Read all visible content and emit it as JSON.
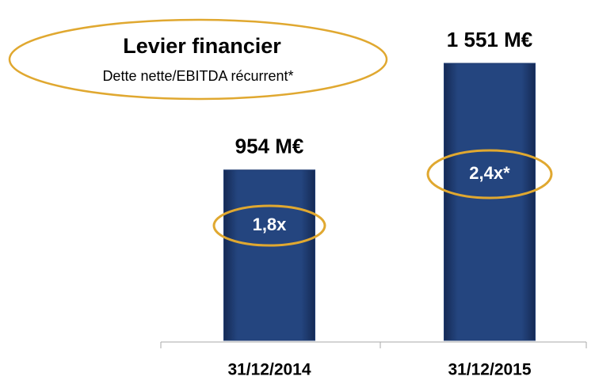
{
  "chart_data": {
    "type": "bar",
    "title": "Levier financier",
    "subtitle": "Dette nette/EBITDA récurrent*",
    "categories": [
      "31/12/2014",
      "31/12/2015"
    ],
    "values": [
      954,
      1551
    ],
    "value_labels": [
      "954 M€",
      "1 551 M€"
    ],
    "bar_annotations": [
      "1,8x",
      "2,4x*"
    ],
    "color": "#1f3c72"
  }
}
